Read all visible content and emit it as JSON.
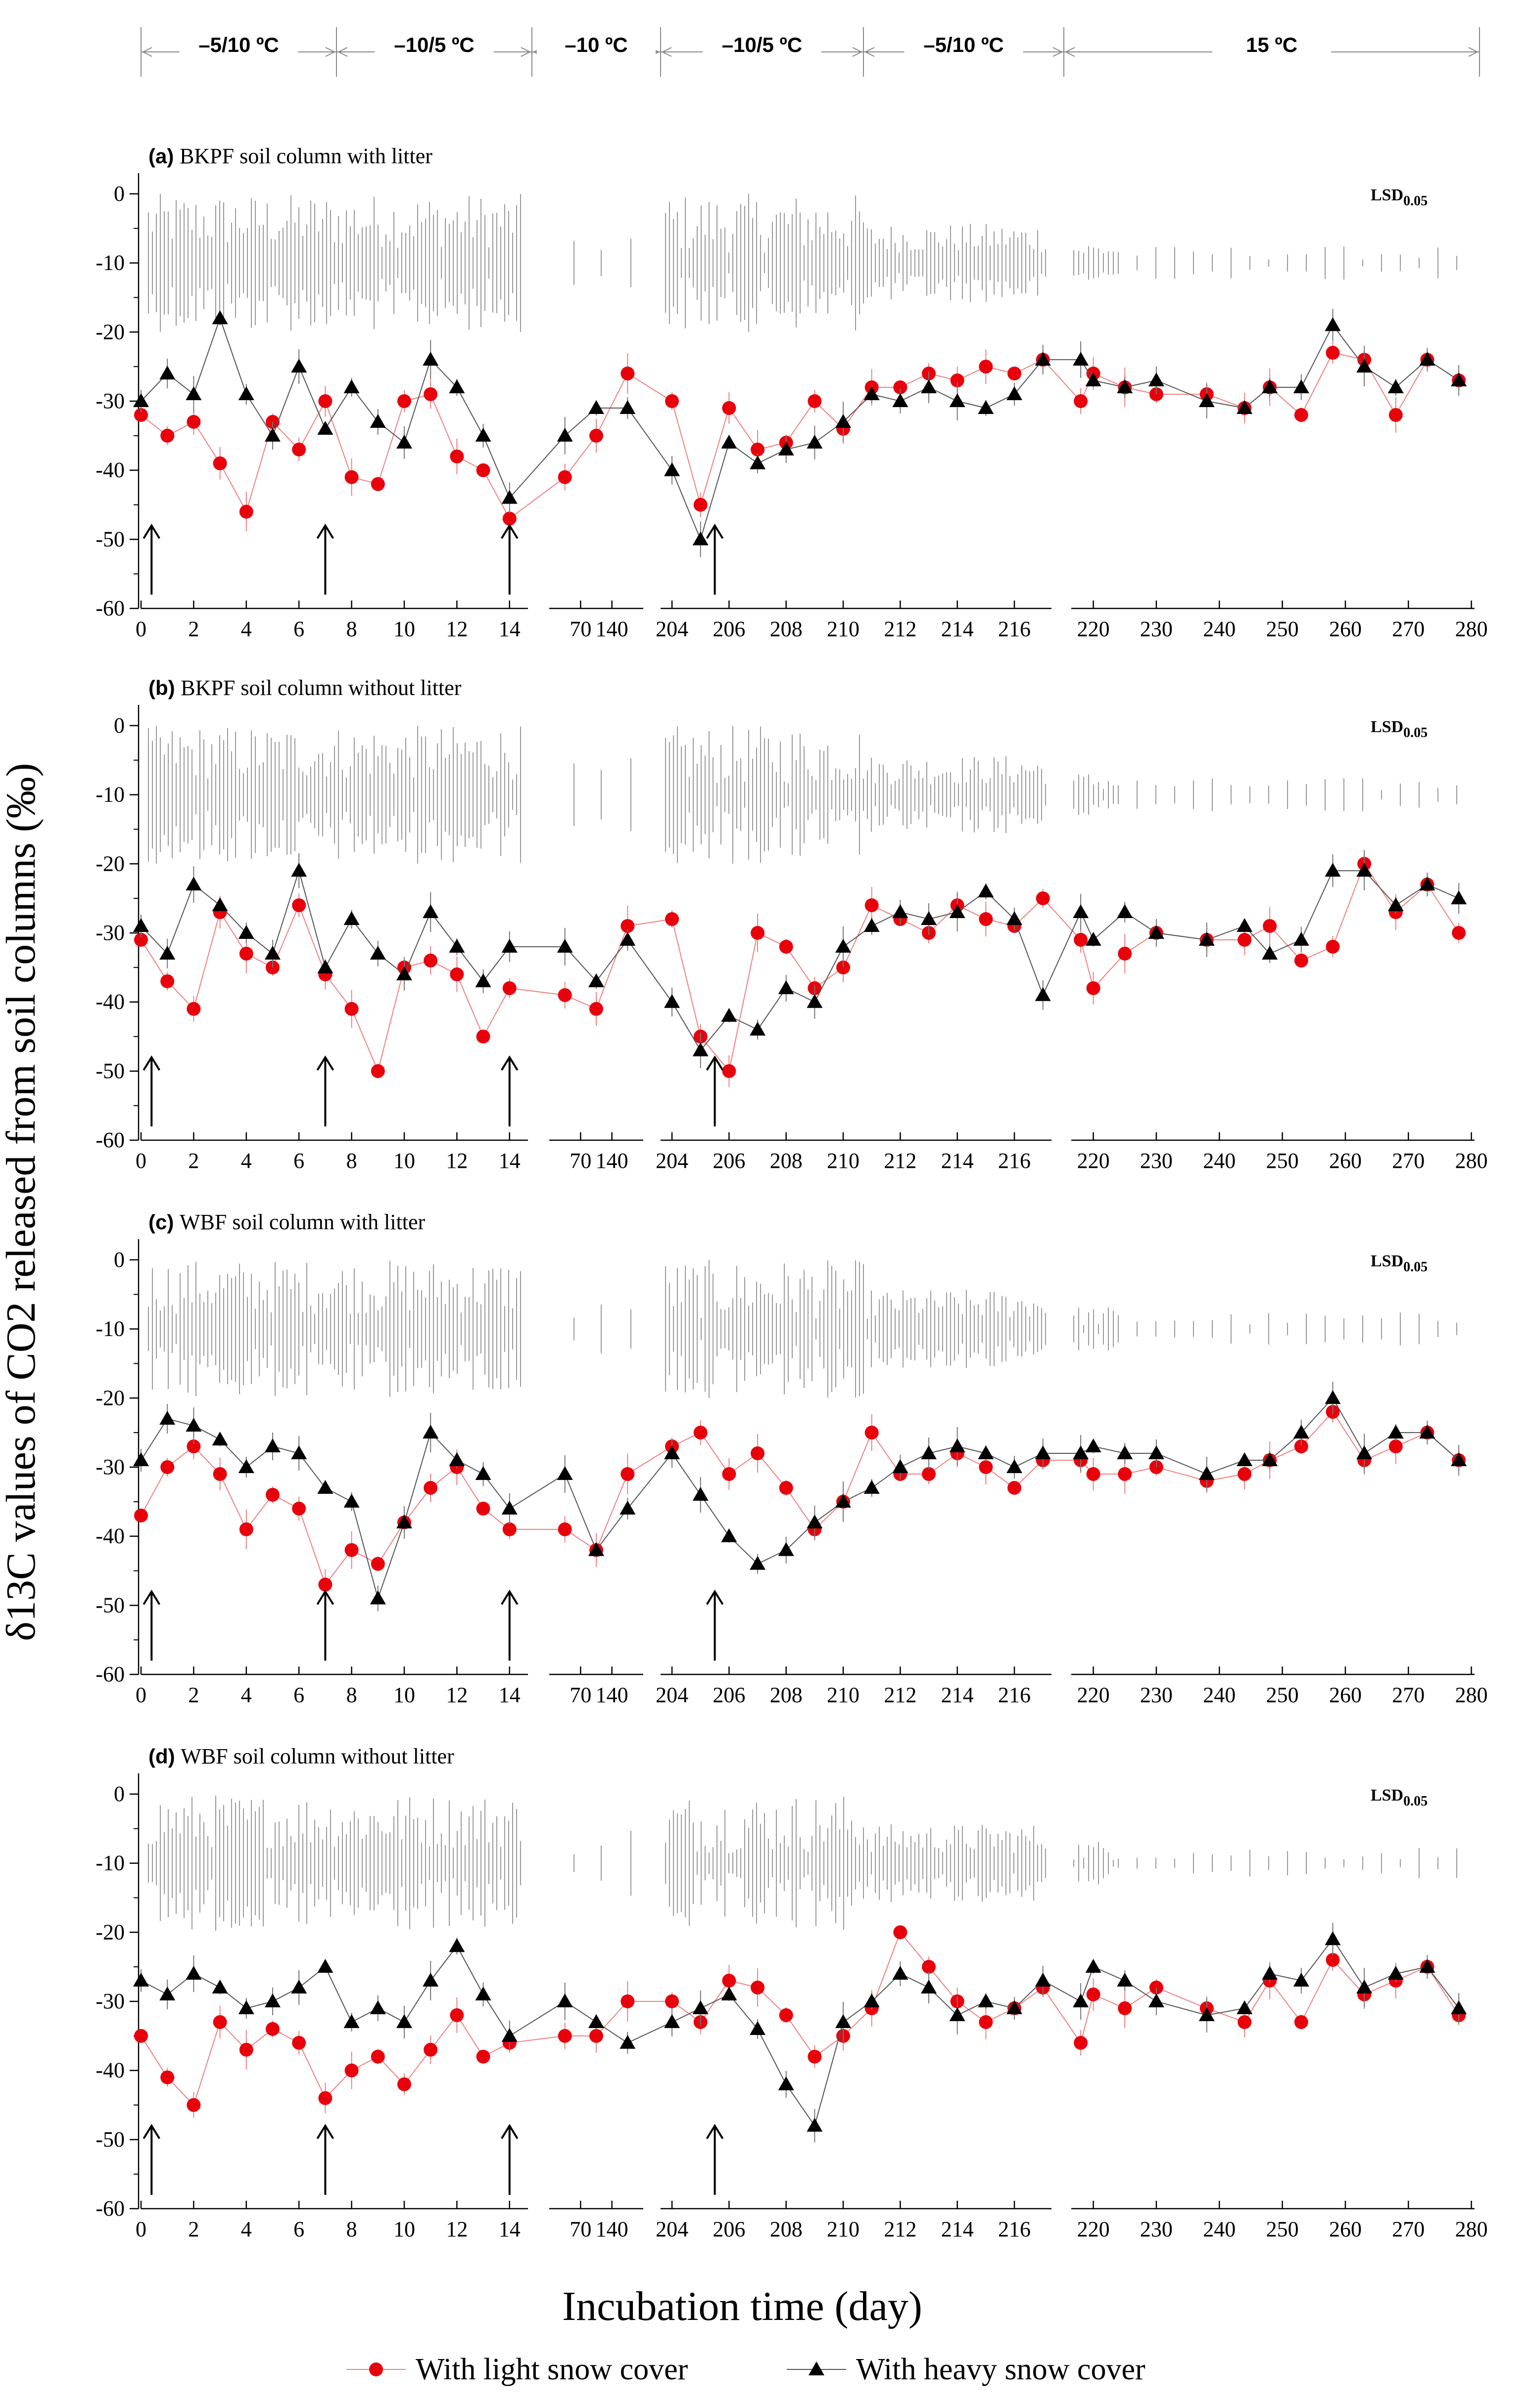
{
  "figure": {
    "y_axis_title": "δ13C  values of CO2 released from soil columns (‰)",
    "x_axis_title": "Incubation time (day)",
    "lsd_label": "LSD0.05",
    "temperature_periods": [
      "–5/10 ºC",
      "–10/5 ºC",
      "–10 ºC",
      "–10/5 ºC",
      "–5/10 ºC",
      "15 ºC"
    ],
    "legend": [
      {
        "label": "With light snow cover",
        "color": "#e8000b",
        "marker": "circle"
      },
      {
        "label": "With heavy snow cover",
        "color": "#000000",
        "marker": "triangle"
      }
    ],
    "segment_tick_labels": [
      [
        "0",
        "2",
        "4",
        "6",
        "8",
        "10",
        "12",
        "14"
      ],
      [
        "70",
        "140"
      ],
      [
        "204",
        "206",
        "208",
        "210",
        "212",
        "214",
        "216"
      ],
      [
        "220",
        "230",
        "240",
        "250",
        "260",
        "270",
        "280"
      ]
    ],
    "y_tick_labels": [
      "0",
      "-10",
      "-20",
      "-30",
      "-40",
      "-50",
      "-60"
    ]
  },
  "chart_data": [
    {
      "type": "line",
      "panel": "(a)",
      "title": "BKPF soil column with litter",
      "ylim": [
        -60,
        3
      ],
      "arrows_at_day": [
        0.4,
        7,
        14,
        205.5
      ],
      "series": [
        {
          "name": "With light snow cover",
          "x": [
            0,
            1,
            2,
            3,
            4,
            5,
            6,
            7,
            8,
            9,
            10,
            11,
            12,
            13,
            14,
            35,
            105,
            175,
            204,
            205,
            206,
            207,
            208,
            209,
            210,
            211,
            212,
            213,
            214,
            215,
            216,
            217,
            218,
            220,
            225,
            230,
            238,
            244,
            248,
            253,
            258,
            263,
            268,
            273,
            278
          ],
          "y": [
            -32,
            -35,
            -33,
            -39,
            -46,
            -33,
            -37,
            -30,
            -41,
            -42,
            -30,
            -29,
            -38,
            -40,
            -47,
            -41,
            -35,
            -26,
            -30,
            -45,
            -31,
            -37,
            -36,
            -30,
            -34,
            -28,
            -28,
            -26,
            -27,
            -25,
            -26,
            -24,
            -30,
            -26,
            -28,
            -29,
            -29,
            -31,
            -28,
            -32,
            -23,
            -24,
            -32,
            -24,
            -27
          ]
        },
        {
          "name": "With heavy snow cover",
          "x": [
            0,
            1,
            2,
            3,
            4,
            5,
            6,
            7,
            8,
            9,
            10,
            11,
            12,
            13,
            14,
            35,
            105,
            175,
            204,
            205,
            206,
            207,
            208,
            209,
            210,
            211,
            212,
            213,
            214,
            215,
            216,
            217,
            218,
            220,
            225,
            230,
            238,
            244,
            248,
            253,
            258,
            263,
            268,
            273,
            278
          ],
          "y": [
            -30,
            -26,
            -29,
            -18,
            -29,
            -35,
            -25,
            -34,
            -28,
            -33,
            -36,
            -24,
            -28,
            -35,
            -44,
            -35,
            -31,
            -31,
            -40,
            -50,
            -36,
            -39,
            -37,
            -36,
            -33,
            -29,
            -30,
            -28,
            -30,
            -31,
            -29,
            -24,
            -24,
            -27,
            -28,
            -27,
            -30,
            -31,
            -28,
            -28,
            -19,
            -25,
            -28,
            -24,
            -27
          ]
        }
      ]
    },
    {
      "type": "line",
      "panel": "(b)",
      "title": "BKPF soil column without litter",
      "ylim": [
        -60,
        3
      ],
      "arrows_at_day": [
        0.4,
        7,
        14,
        205.5
      ],
      "series": [
        {
          "name": "With light snow cover",
          "x": [
            0,
            1,
            2,
            3,
            4,
            5,
            6,
            7,
            8,
            9,
            10,
            11,
            12,
            13,
            14,
            35,
            105,
            175,
            204,
            205,
            206,
            207,
            208,
            209,
            210,
            211,
            212,
            213,
            214,
            215,
            216,
            217,
            218,
            220,
            225,
            230,
            238,
            244,
            248,
            253,
            258,
            263,
            268,
            273,
            278
          ],
          "y": [
            -31,
            -37,
            -41,
            -27,
            -33,
            -35,
            -26,
            -36,
            -41,
            -50,
            -35,
            -34,
            -36,
            -45,
            -38,
            -39,
            -41,
            -29,
            -28,
            -45,
            -50,
            -30,
            -32,
            -38,
            -35,
            -26,
            -28,
            -30,
            -26,
            -28,
            -29,
            -25,
            -31,
            -38,
            -33,
            -30,
            -31,
            -31,
            -29,
            -34,
            -32,
            -20,
            -27,
            -23,
            -30
          ]
        },
        {
          "name": "With heavy snow cover",
          "x": [
            0,
            1,
            2,
            3,
            4,
            5,
            6,
            7,
            8,
            9,
            10,
            11,
            12,
            13,
            14,
            35,
            105,
            175,
            204,
            205,
            206,
            207,
            208,
            209,
            210,
            211,
            212,
            213,
            214,
            215,
            216,
            217,
            218,
            220,
            225,
            230,
            238,
            244,
            248,
            253,
            258,
            263,
            268,
            273,
            278
          ],
          "y": [
            -29,
            -33,
            -23,
            -26,
            -30,
            -33,
            -21,
            -35,
            -28,
            -33,
            -36,
            -27,
            -32,
            -37,
            -32,
            -32,
            -37,
            -31,
            -40,
            -47,
            -42,
            -44,
            -38,
            -40,
            -32,
            -29,
            -27,
            -28,
            -27,
            -24,
            -28,
            -39,
            -27,
            -31,
            -27,
            -30,
            -31,
            -29,
            -33,
            -31,
            -21,
            -21,
            -26,
            -23,
            -25
          ]
        }
      ]
    },
    {
      "type": "line",
      "panel": "(c)",
      "title": "WBF soil column with litter",
      "ylim": [
        -60,
        3
      ],
      "arrows_at_day": [
        0.4,
        7,
        14,
        205.5
      ],
      "series": [
        {
          "name": "With light snow cover",
          "x": [
            0,
            1,
            2,
            3,
            4,
            5,
            6,
            7,
            8,
            9,
            10,
            11,
            12,
            13,
            14,
            35,
            105,
            175,
            204,
            205,
            206,
            207,
            208,
            209,
            210,
            211,
            212,
            213,
            214,
            215,
            216,
            217,
            218,
            220,
            225,
            230,
            238,
            244,
            248,
            253,
            258,
            263,
            268,
            273,
            278
          ],
          "y": [
            -37,
            -30,
            -27,
            -31,
            -39,
            -34,
            -36,
            -47,
            -42,
            -44,
            -38,
            -33,
            -30,
            -36,
            -39,
            -39,
            -42,
            -31,
            -27,
            -25,
            -31,
            -28,
            -33,
            -39,
            -35,
            -25,
            -31,
            -31,
            -28,
            -30,
            -33,
            -29,
            -29,
            -31,
            -31,
            -30,
            -32,
            -31,
            -29,
            -27,
            -22,
            -29,
            -27,
            -25,
            -29
          ]
        },
        {
          "name": "With heavy snow cover",
          "x": [
            0,
            1,
            2,
            3,
            4,
            5,
            6,
            7,
            8,
            9,
            10,
            11,
            12,
            13,
            14,
            35,
            105,
            175,
            204,
            205,
            206,
            207,
            208,
            209,
            210,
            211,
            212,
            213,
            214,
            215,
            216,
            217,
            218,
            220,
            225,
            230,
            238,
            244,
            248,
            253,
            258,
            263,
            268,
            273,
            278
          ],
          "y": [
            -29,
            -23,
            -24,
            -26,
            -30,
            -27,
            -28,
            -33,
            -35,
            -49,
            -38,
            -25,
            -29,
            -31,
            -36,
            -31,
            -42,
            -36,
            -28,
            -34,
            -40,
            -44,
            -42,
            -38,
            -35,
            -33,
            -30,
            -28,
            -27,
            -28,
            -30,
            -28,
            -28,
            -27,
            -28,
            -28,
            -31,
            -29,
            -29,
            -25,
            -20,
            -28,
            -25,
            -25,
            -29
          ]
        }
      ]
    },
    {
      "type": "line",
      "panel": "(d)",
      "title": "WBF soil column without litter",
      "ylim": [
        -60,
        3
      ],
      "arrows_at_day": [
        0.4,
        7,
        14,
        205.5
      ],
      "series": [
        {
          "name": "With light snow cover",
          "x": [
            0,
            1,
            2,
            3,
            4,
            5,
            6,
            7,
            8,
            9,
            10,
            11,
            12,
            13,
            14,
            35,
            105,
            175,
            204,
            205,
            206,
            207,
            208,
            209,
            210,
            211,
            212,
            213,
            214,
            215,
            216,
            217,
            218,
            220,
            225,
            230,
            238,
            244,
            248,
            253,
            258,
            263,
            268,
            273,
            278
          ],
          "y": [
            -35,
            -41,
            -45,
            -33,
            -37,
            -34,
            -36,
            -44,
            -40,
            -38,
            -42,
            -37,
            -32,
            -38,
            -36,
            -35,
            -35,
            -30,
            -30,
            -33,
            -27,
            -28,
            -32,
            -38,
            -35,
            -31,
            -20,
            -25,
            -30,
            -33,
            -31,
            -28,
            -36,
            -29,
            -31,
            -28,
            -31,
            -33,
            -27,
            -33,
            -24,
            -29,
            -27,
            -25,
            -32
          ]
        },
        {
          "name": "With heavy snow cover",
          "x": [
            0,
            1,
            2,
            3,
            4,
            5,
            6,
            7,
            8,
            9,
            10,
            11,
            12,
            13,
            14,
            35,
            105,
            175,
            204,
            205,
            206,
            207,
            208,
            209,
            210,
            211,
            212,
            213,
            214,
            215,
            216,
            217,
            218,
            220,
            225,
            230,
            238,
            244,
            248,
            253,
            258,
            263,
            268,
            273,
            278
          ],
          "y": [
            -27,
            -29,
            -26,
            -28,
            -31,
            -30,
            -28,
            -25,
            -33,
            -31,
            -33,
            -27,
            -22,
            -29,
            -35,
            -30,
            -33,
            -36,
            -33,
            -31,
            -29,
            -34,
            -42,
            -48,
            -33,
            -30,
            -26,
            -28,
            -32,
            -30,
            -31,
            -27,
            -30,
            -25,
            -27,
            -30,
            -32,
            -31,
            -26,
            -27,
            -21,
            -28,
            -26,
            -25,
            -31
          ]
        }
      ]
    }
  ]
}
